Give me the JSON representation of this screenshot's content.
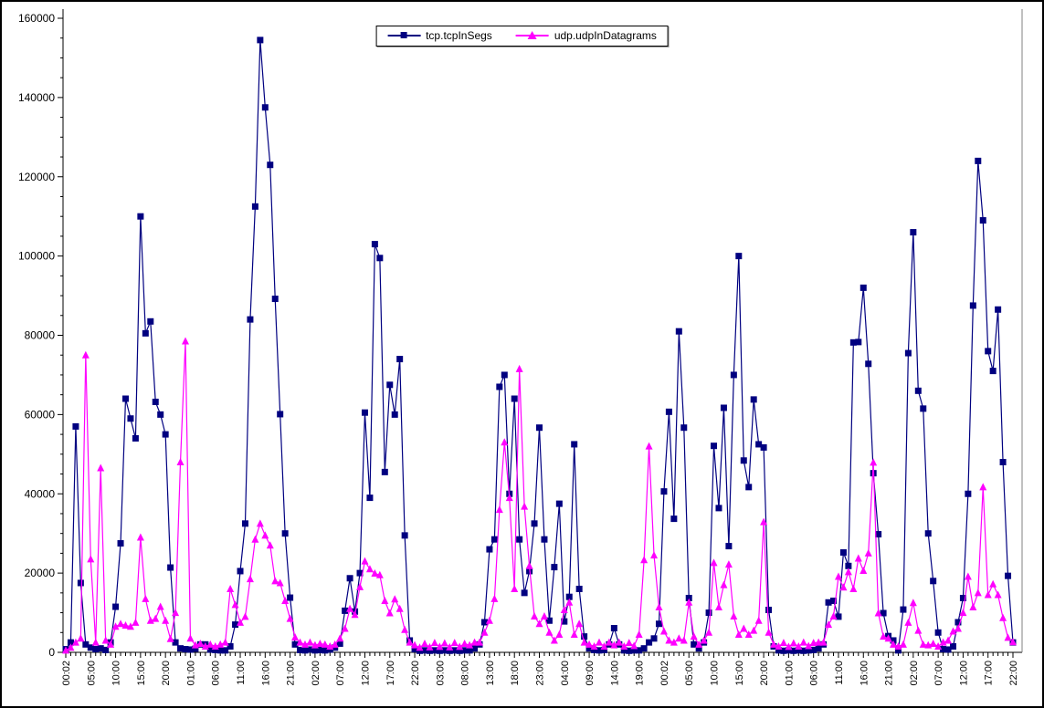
{
  "window": {
    "background": "#FFFFFF",
    "border_color": "#000000"
  },
  "legend": {
    "position": "top-center",
    "items": [
      {
        "label": "tcp.tcpInSegs",
        "marker": "square",
        "color": "#000080"
      },
      {
        "label": "udp.udpInDatagrams",
        "marker": "triangle",
        "color": "#FF00FF"
      }
    ]
  },
  "chart_data": {
    "type": "line",
    "title": "",
    "xlabel": "",
    "ylabel": "",
    "ylim": [
      0,
      160000
    ],
    "y_tick_interval": 20000,
    "y_minor_tick_interval": 5000,
    "grid": false,
    "legend_position": "top-center",
    "x_unit": "hourly samples, labels every 5 hours",
    "y_tick_labels": [
      "0",
      "20000",
      "40000",
      "60000",
      "80000",
      "100000",
      "120000",
      "140000",
      "160000"
    ],
    "x_tick_labels": [
      "00:02",
      "05:00",
      "10:00",
      "15:00",
      "20:00",
      "01:00",
      "06:00",
      "11:00",
      "16:00",
      "21:00",
      "02:00",
      "07:00",
      "12:00",
      "17:00",
      "22:00",
      "03:00",
      "08:00",
      "13:00",
      "18:00",
      "23:00",
      "04:00",
      "09:00",
      "14:00",
      "19:00",
      "00:02",
      "05:00",
      "10:00",
      "15:00",
      "20:00",
      "01:00",
      "06:00",
      "11:00",
      "16:00",
      "21:00",
      "02:00",
      "07:00",
      "12:00",
      "17:00",
      "22:00"
    ],
    "x_label_every": 5,
    "series": [
      {
        "name": "tcp.tcpInSegs",
        "color": "#000080",
        "marker": "square",
        "values": [
          800,
          2500,
          57000,
          17500,
          2000,
          1200,
          800,
          1000,
          600,
          2500,
          11500,
          27500,
          64000,
          59000,
          54000,
          110000,
          80500,
          83500,
          63200,
          60000,
          55000,
          21400,
          2500,
          1000,
          800,
          700,
          900,
          2000,
          2000,
          700,
          600,
          500,
          500,
          1500,
          7000,
          20500,
          32500,
          84000,
          112500,
          154500,
          137500,
          123000,
          89200,
          60100,
          30000,
          13800,
          2000,
          600,
          500,
          700,
          500,
          600,
          500,
          700,
          1200,
          2200,
          10500,
          18700,
          10300,
          20000,
          60500,
          39000,
          103000,
          99500,
          45500,
          67500,
          60000,
          74000,
          29500,
          3000,
          800,
          400,
          500,
          400,
          500,
          400,
          500,
          400,
          500,
          400,
          500,
          500,
          1000,
          2000,
          7600,
          26000,
          28500,
          67000,
          70000,
          40000,
          64000,
          28500,
          15000,
          20500,
          32500,
          56700,
          28500,
          8000,
          21500,
          37500,
          7800,
          14000,
          52500,
          16000,
          4000,
          1000,
          600,
          500,
          600,
          2000,
          6100,
          2000,
          500,
          400,
          500,
          500,
          1000,
          2500,
          3500,
          7200,
          40600,
          60700,
          33700,
          81000,
          56700,
          13700,
          2000,
          1000,
          2500,
          10000,
          52100,
          36400,
          61700,
          26800,
          70000,
          100000,
          48400,
          41700,
          63800,
          52500,
          51700,
          10700,
          1500,
          500,
          400,
          500,
          400,
          500,
          400,
          500,
          600,
          1000,
          2000,
          12600,
          13000,
          9000,
          25200,
          21800,
          78200,
          78300,
          92000,
          72800,
          45200,
          29800,
          9900,
          4100,
          3000,
          500,
          10800,
          75500,
          106000,
          66000,
          61500,
          30000,
          18000,
          5000,
          800,
          700,
          1500,
          7600,
          13700,
          40000,
          87500,
          124000,
          109000,
          76000,
          71000,
          86500,
          48000,
          19300,
          2500
        ]
      },
      {
        "name": "udp.udpInDatagrams",
        "color": "#FF00FF",
        "marker": "triangle",
        "values": [
          500,
          1200,
          2500,
          3500,
          75000,
          23500,
          2500,
          46500,
          3000,
          2000,
          6500,
          7200,
          6800,
          6500,
          7500,
          29000,
          13500,
          8000,
          8500,
          11500,
          8000,
          3400,
          10000,
          48000,
          78500,
          3500,
          1800,
          2200,
          1500,
          2000,
          1500,
          2000,
          2500,
          16000,
          12000,
          7500,
          9000,
          18500,
          28500,
          32500,
          29500,
          27000,
          18000,
          17500,
          13000,
          8500,
          3800,
          2500,
          2000,
          2500,
          1800,
          2200,
          2000,
          1500,
          2000,
          3500,
          6000,
          11000,
          9500,
          16500,
          23000,
          21000,
          19900,
          19500,
          13000,
          9900,
          13400,
          11000,
          5700,
          2500,
          1800,
          1200,
          2200,
          1300,
          2400,
          1400,
          2300,
          1300,
          2400,
          1400,
          2200,
          1800,
          2500,
          2500,
          5000,
          8000,
          13500,
          36000,
          53000,
          39000,
          16000,
          71500,
          36800,
          21800,
          9100,
          7200,
          9100,
          5000,
          3000,
          4500,
          10700,
          12600,
          4500,
          7200,
          2500,
          2000,
          1500,
          2500,
          1500,
          2500,
          1800,
          2500,
          1500,
          2400,
          1600,
          4500,
          23300,
          52000,
          24500,
          11400,
          5300,
          3000,
          2500,
          3500,
          3000,
          12600,
          4000,
          2000,
          3000,
          5000,
          22600,
          11400,
          17000,
          22200,
          9100,
          4500,
          6000,
          4500,
          5500,
          8000,
          32900,
          5000,
          2000,
          1500,
          2400,
          1400,
          2300,
          1500,
          2500,
          1600,
          2400,
          2500,
          2500,
          7000,
          9100,
          19100,
          16400,
          20300,
          16000,
          23700,
          20600,
          25000,
          47900,
          9900,
          4000,
          3500,
          2000,
          1500,
          2000,
          7500,
          12500,
          5500,
          2000,
          1800,
          2200,
          1500,
          2500,
          3000,
          5300,
          6000,
          10000,
          19100,
          11400,
          15000,
          41700,
          14500,
          17200,
          14500,
          8700,
          3700,
          2600
        ]
      }
    ]
  }
}
